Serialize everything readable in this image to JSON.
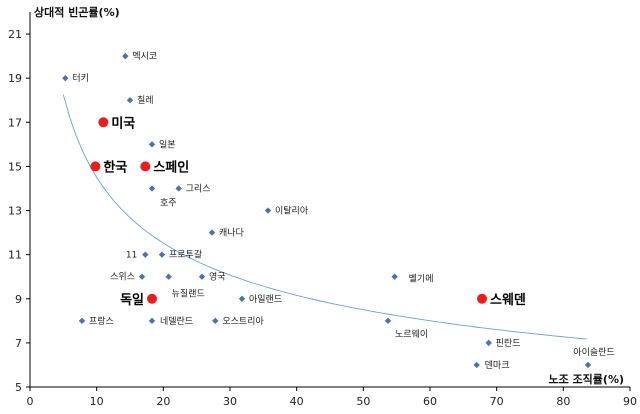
{
  "chart_data": {
    "type": "scatter",
    "title": "",
    "ylabel": "상대적 빈곤률(%)",
    "xlabel": "노조 조직률(%)",
    "xlim": [
      0,
      90
    ],
    "ylim": [
      5,
      22
    ],
    "x_ticks": [
      0,
      10,
      20,
      30,
      40,
      50,
      60,
      70,
      80,
      90
    ],
    "y_ticks": [
      5,
      7,
      9,
      11,
      13,
      15,
      17,
      19,
      21
    ],
    "grid": false,
    "colors": {
      "small_marker": "#4a72b0",
      "big_marker": "#ee1c1c",
      "trend": "#6a9fd8",
      "axis": "#000000"
    },
    "points": [
      {
        "label": "멕시코",
        "x": 14.3,
        "y": 20.0,
        "highlight": false
      },
      {
        "label": "터키",
        "x": 5.3,
        "y": 19.0,
        "highlight": false
      },
      {
        "label": "칠레",
        "x": 15.0,
        "y": 18.0,
        "highlight": false
      },
      {
        "label": "미국",
        "x": 11.0,
        "y": 17.0,
        "highlight": true
      },
      {
        "label": "일본",
        "x": 18.3,
        "y": 16.0,
        "highlight": false
      },
      {
        "label": "한국",
        "x": 9.8,
        "y": 15.0,
        "highlight": true
      },
      {
        "label": "스페인",
        "x": 17.3,
        "y": 15.0,
        "highlight": true
      },
      {
        "label": "호주",
        "x": 18.3,
        "y": 14.0,
        "highlight": false
      },
      {
        "label": "그리스",
        "x": 22.3,
        "y": 14.0,
        "highlight": false
      },
      {
        "label": "이탈리아",
        "x": 35.7,
        "y": 13.0,
        "highlight": false
      },
      {
        "label": "캐나다",
        "x": 27.3,
        "y": 12.0,
        "highlight": false
      },
      {
        "label": "11",
        "x": 17.3,
        "y": 11.0,
        "highlight": false
      },
      {
        "label": "프로투갈",
        "x": 19.8,
        "y": 11.0,
        "highlight": false
      },
      {
        "label": "스위스",
        "x": 16.8,
        "y": 10.0,
        "highlight": false
      },
      {
        "label": "뉴질랜드",
        "x": 20.8,
        "y": 10.0,
        "highlight": false
      },
      {
        "label": "영국",
        "x": 25.8,
        "y": 10.0,
        "highlight": false
      },
      {
        "label": "벨기에",
        "x": 54.7,
        "y": 10.0,
        "highlight": false
      },
      {
        "label": "독일",
        "x": 18.3,
        "y": 9.0,
        "highlight": true
      },
      {
        "label": "아일랜드",
        "x": 31.8,
        "y": 9.0,
        "highlight": false
      },
      {
        "label": "스웨덴",
        "x": 67.8,
        "y": 9.0,
        "highlight": true
      },
      {
        "label": "프랑스",
        "x": 7.8,
        "y": 8.0,
        "highlight": false
      },
      {
        "label": "네델란드",
        "x": 18.3,
        "y": 8.0,
        "highlight": false
      },
      {
        "label": "오스트리아",
        "x": 27.8,
        "y": 8.0,
        "highlight": false
      },
      {
        "label": "노르웨이",
        "x": 53.7,
        "y": 8.0,
        "highlight": false
      },
      {
        "label": "핀란드",
        "x": 68.8,
        "y": 7.0,
        "highlight": false
      },
      {
        "label": "덴마크",
        "x": 67.0,
        "y": 6.0,
        "highlight": false
      },
      {
        "label": "아이슬란드",
        "x": 83.7,
        "y": 6.0,
        "highlight": false
      }
    ],
    "trendline": {
      "type": "power",
      "x_start": 5.0,
      "x_end": 83.5
    }
  }
}
